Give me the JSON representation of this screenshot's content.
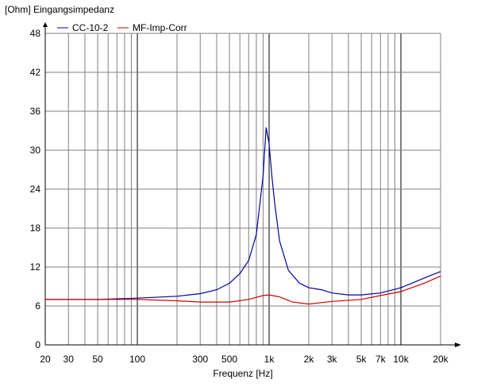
{
  "chart_data": {
    "type": "line",
    "title": "[Ohm]  Eingangsimpedanz",
    "xlabel": "Frequenz [Hz]",
    "ylabel": "[Ohm]",
    "xscale": "log",
    "xlim": [
      20,
      20000
    ],
    "ylim": [
      0,
      48
    ],
    "yticks": [
      0,
      6,
      12,
      18,
      24,
      30,
      36,
      42,
      48
    ],
    "xticks": [
      {
        "v": 20,
        "l": "20"
      },
      {
        "v": 30,
        "l": "30"
      },
      {
        "v": 50,
        "l": "50"
      },
      {
        "v": 100,
        "l": "100"
      },
      {
        "v": 300,
        "l": "300"
      },
      {
        "v": 500,
        "l": "500"
      },
      {
        "v": 1000,
        "l": "1k"
      },
      {
        "v": 2000,
        "l": "2k"
      },
      {
        "v": 3000,
        "l": "3k"
      },
      {
        "v": 5000,
        "l": "5k"
      },
      {
        "v": 7000,
        "l": "7k"
      },
      {
        "v": 10000,
        "l": "10k"
      },
      {
        "v": 20000,
        "l": "20k"
      }
    ],
    "legend_position": "top-left",
    "series": [
      {
        "name": "CC-10-2",
        "color": "#0000a0",
        "x": [
          20,
          50,
          100,
          200,
          300,
          400,
          500,
          600,
          700,
          800,
          900,
          950,
          1000,
          1050,
          1100,
          1200,
          1400,
          1700,
          2000,
          2500,
          3000,
          4000,
          5000,
          7000,
          10000,
          15000,
          20000
        ],
        "y": [
          7.0,
          7.0,
          7.2,
          7.5,
          7.9,
          8.5,
          9.5,
          11,
          13,
          17,
          26,
          33.5,
          31,
          26,
          22,
          16,
          11.5,
          9.5,
          8.8,
          8.5,
          8.0,
          7.7,
          7.7,
          8.0,
          8.8,
          10.3,
          11.3
        ]
      },
      {
        "name": "MF-Imp-Corr",
        "color": "#d00000",
        "x": [
          20,
          50,
          100,
          200,
          300,
          500,
          700,
          900,
          1000,
          1200,
          1500,
          2000,
          3000,
          5000,
          7000,
          10000,
          15000,
          20000
        ],
        "y": [
          7.0,
          7.0,
          7.0,
          6.8,
          6.6,
          6.6,
          7.0,
          7.6,
          7.7,
          7.4,
          6.6,
          6.3,
          6.7,
          7.0,
          7.6,
          8.2,
          9.5,
          10.6
        ]
      }
    ]
  }
}
